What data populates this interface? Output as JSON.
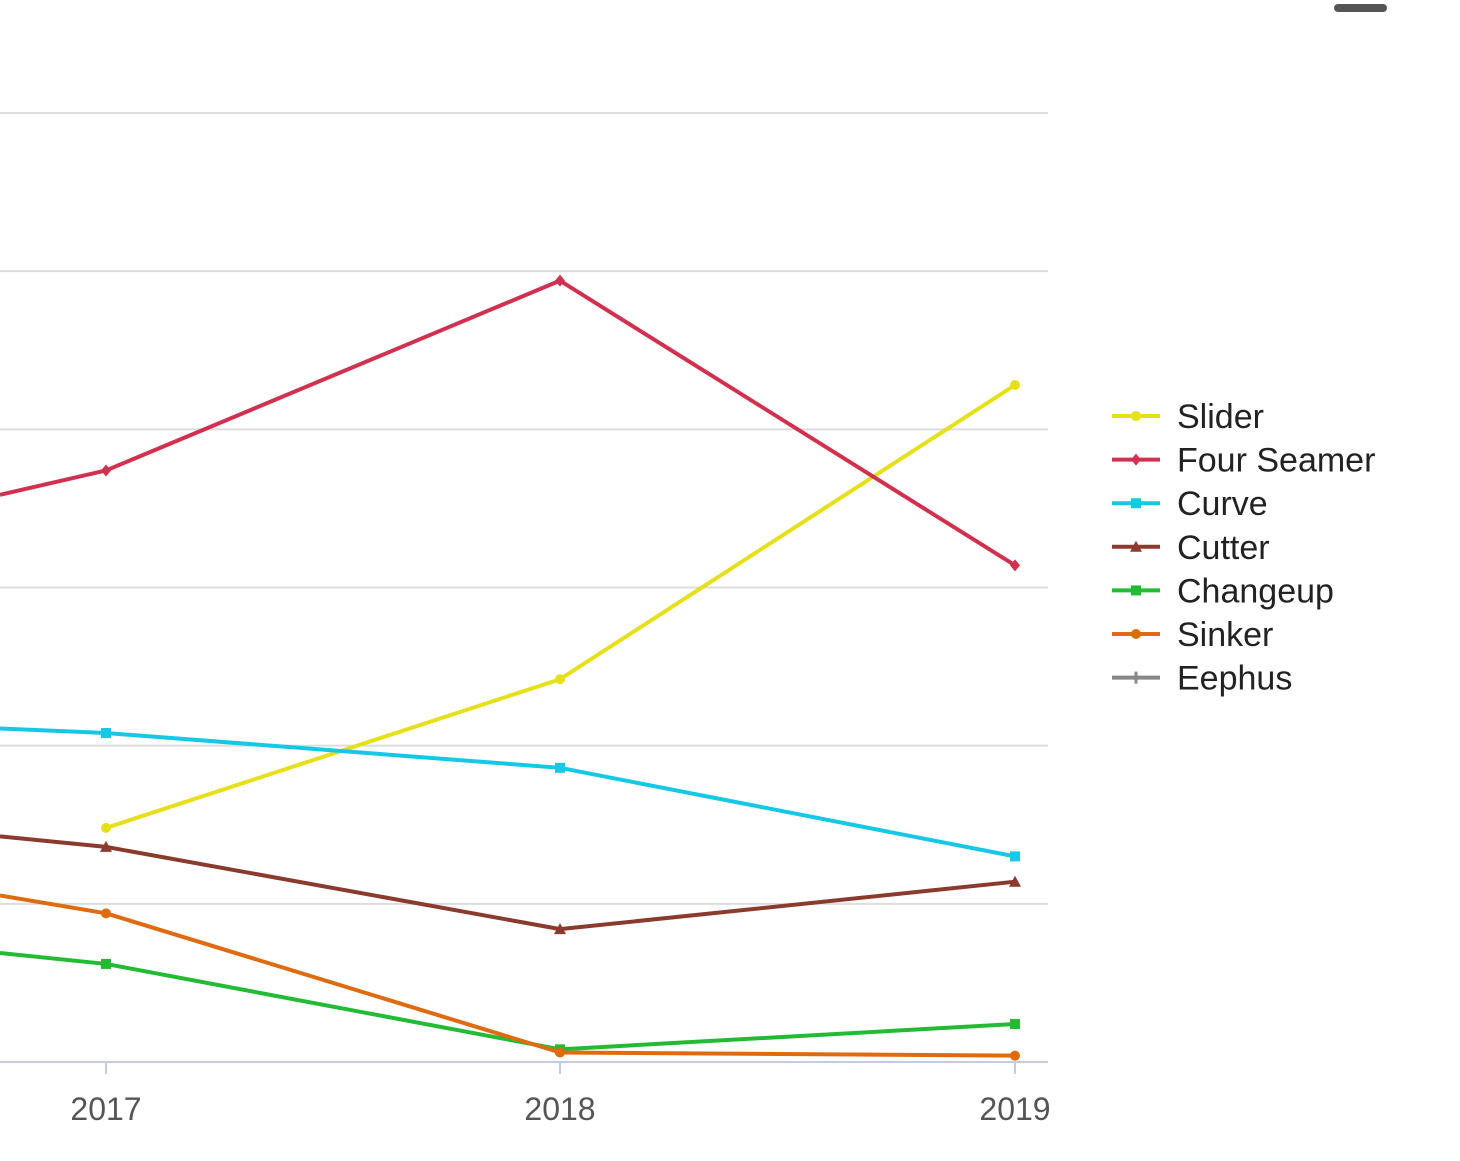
{
  "toolbar": {
    "menu_icon": "minus-icon"
  },
  "colors": {
    "grid": "#dddddd",
    "axis": "#c5cbe0",
    "tick_text": "#555555"
  },
  "chart_data": {
    "type": "line",
    "title": "",
    "xlabel": "",
    "ylabel": "",
    "x": [
      "2017",
      "2018",
      "2019"
    ],
    "ylim": [
      0,
      30
    ],
    "grid": true,
    "legend_position": "right",
    "series": [
      {
        "name": "Slider",
        "color": "#e6e01a",
        "marker": "circle",
        "values": [
          7.4,
          12.1,
          21.4
        ]
      },
      {
        "name": "Four Seamer",
        "color": "#d1304f",
        "marker": "diamond",
        "values": [
          18.7,
          24.7,
          15.7
        ]
      },
      {
        "name": "Curve",
        "color": "#14c8e6",
        "marker": "square",
        "values": [
          10.4,
          9.3,
          6.5
        ]
      },
      {
        "name": "Cutter",
        "color": "#8b3a2e",
        "marker": "triangle",
        "values": [
          6.8,
          4.2,
          5.7
        ]
      },
      {
        "name": "Changeup",
        "color": "#22bb33",
        "marker": "square",
        "values": [
          3.1,
          0.4,
          1.2
        ]
      },
      {
        "name": "Sinker",
        "color": "#e06a10",
        "marker": "circle",
        "values": [
          4.7,
          0.3,
          0.2
        ]
      },
      {
        "name": "Eephus",
        "color": "#888888",
        "marker": "cross",
        "values": [
          null,
          null,
          null
        ]
      }
    ]
  }
}
